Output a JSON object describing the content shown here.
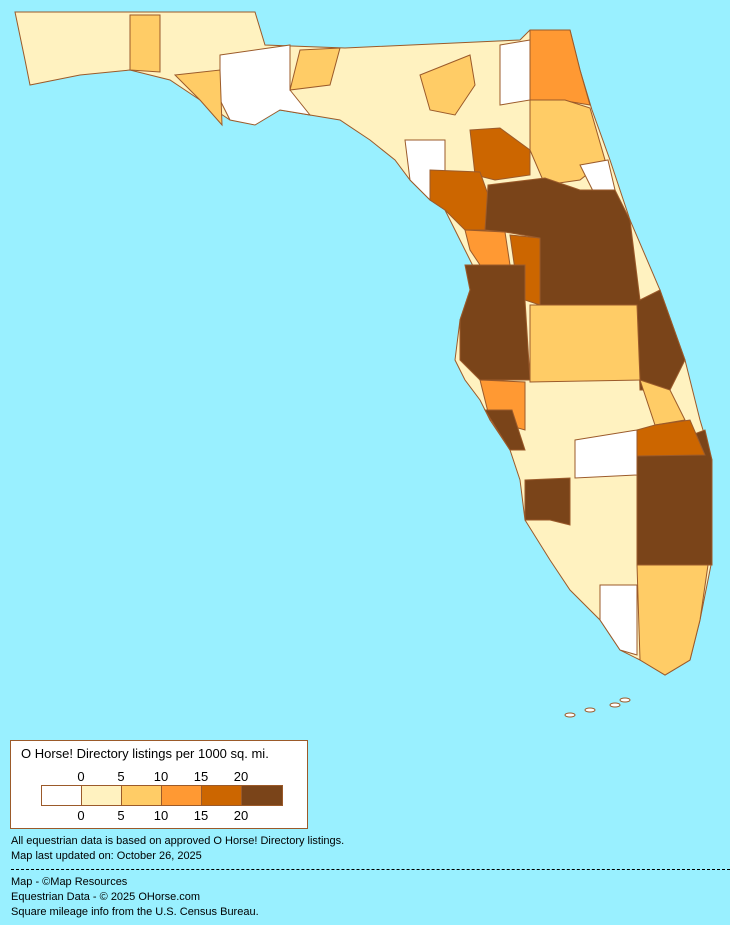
{
  "legend": {
    "title": "O Horse! Directory listings per 1000 sq. mi.",
    "ticks": [
      "0",
      "5",
      "10",
      "15",
      "20"
    ],
    "colors": [
      "#FFFFFF",
      "#FFF2C0",
      "#FFCC66",
      "#FF9933",
      "#CC6600",
      "#7A4419"
    ]
  },
  "notes": {
    "line1": "All equestrian data is based on approved O Horse! Directory listings.",
    "line2": "Map last updated on: October 26, 2025"
  },
  "credits": {
    "map": "Map - ©Map Resources",
    "data": "Equestrian Data - © 2025 OHorse.com",
    "census": "Square mileage info from the U.S. Census Bureau."
  },
  "map": {
    "state": "Florida",
    "border_color": "#9B5A2A",
    "water_color": "#99F0FF"
  }
}
